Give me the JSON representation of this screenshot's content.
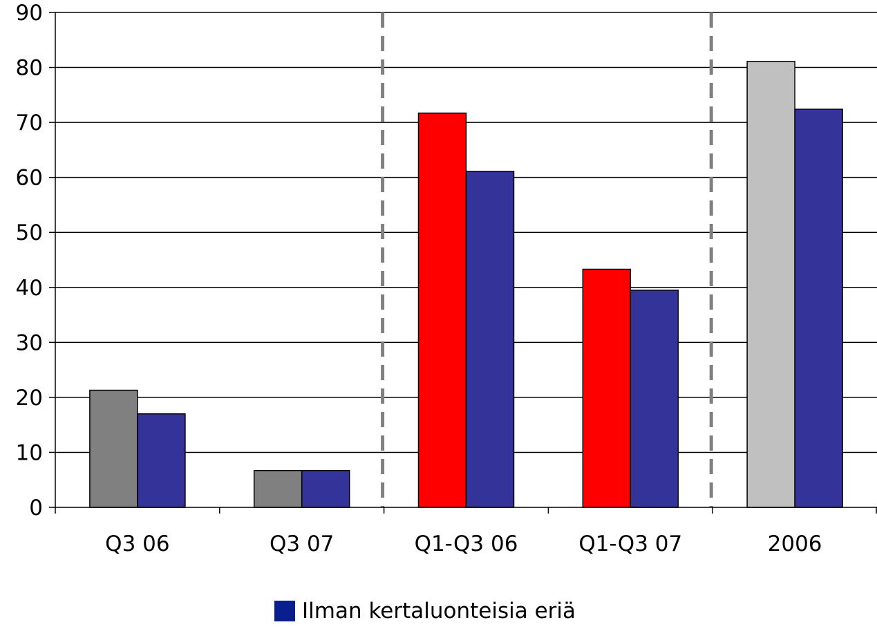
{
  "chart_data": {
    "type": "bar",
    "categories": [
      "Q3 06",
      "Q3 07",
      "Q1-Q3 06",
      "Q1-Q3 07",
      "2006"
    ],
    "series": [
      {
        "name": "",
        "values": [
          21.3,
          6.7,
          71.7,
          43.3,
          81.1
        ],
        "colors": [
          "#808080",
          "#808080",
          "#ff0000",
          "#ff0000",
          "#c0c0c0"
        ]
      },
      {
        "name": "Ilman kertaluonteisia eriä",
        "values": [
          17.0,
          6.7,
          61.1,
          39.5,
          72.4
        ],
        "color": "#333399"
      }
    ],
    "ylim": [
      0,
      90
    ],
    "yticks": [
      0,
      10,
      20,
      30,
      40,
      50,
      60,
      70,
      80,
      90
    ],
    "grid": true,
    "separators_after_categories": [
      "Q3 07",
      "Q1-Q3 07"
    ],
    "separator_color": "#808080",
    "legend": {
      "position": "bottom",
      "label": "Ilman kertaluonteisia eriä",
      "color": "#0a1f8f"
    },
    "title": "",
    "xlabel": "",
    "ylabel": ""
  }
}
